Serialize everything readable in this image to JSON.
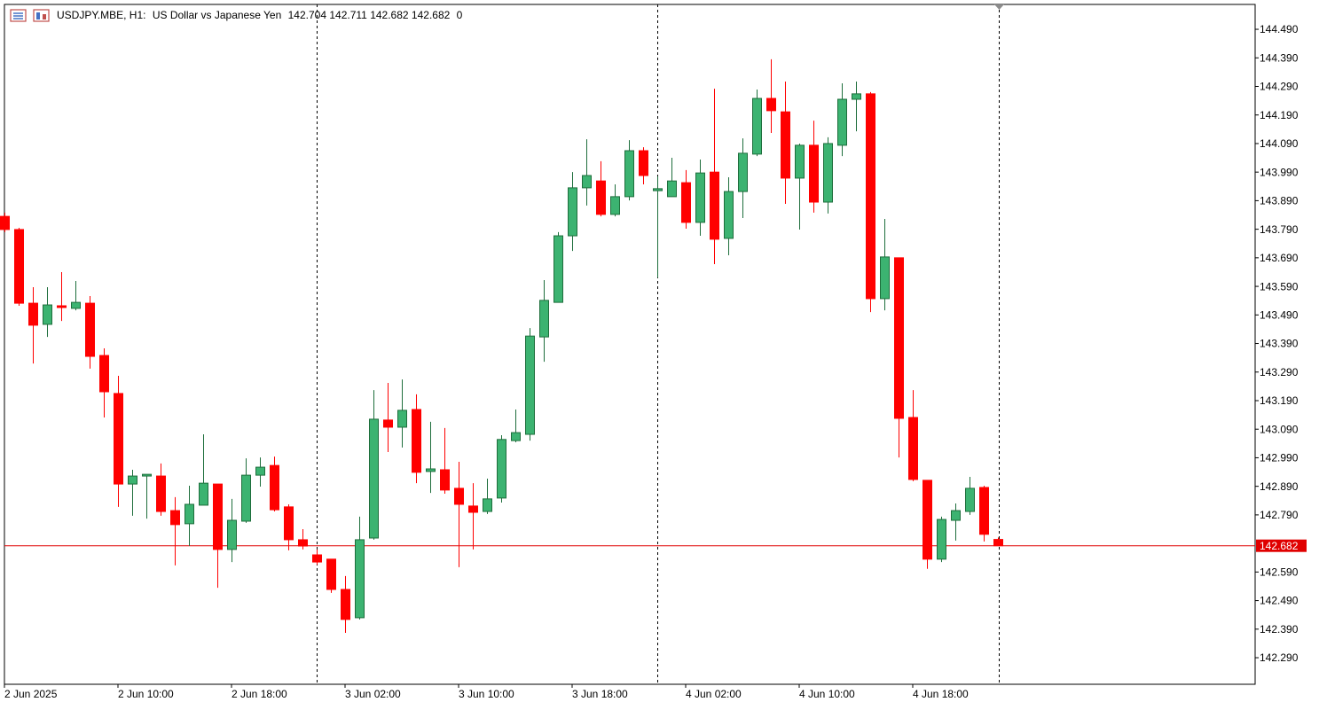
{
  "chart_data": {
    "type": "candlestick",
    "symbol": "USDJPY.MBE, H1:",
    "description": "US Dollar vs Japanese Yen",
    "spread": 0,
    "categories": [
      "2 Jun 2025",
      null,
      null,
      null,
      null,
      null,
      null,
      null,
      "2 Jun 10:00",
      null,
      null,
      null,
      null,
      null,
      null,
      null,
      "2 Jun 18:00",
      null,
      null,
      null,
      null,
      null,
      null,
      null,
      "3 Jun 02:00",
      null,
      null,
      null,
      null,
      null,
      null,
      null,
      "3 Jun 10:00",
      null,
      null,
      null,
      null,
      null,
      null,
      null,
      "3 Jun 18:00",
      null,
      null,
      null,
      null,
      null,
      null,
      null,
      "4 Jun 02:00",
      null,
      null,
      null,
      null,
      null,
      null,
      null,
      "4 Jun 10:00",
      null,
      null,
      null,
      null,
      null,
      null,
      null,
      "4 Jun 18:00",
      null,
      null,
      null,
      null,
      null,
      null
    ],
    "open": [
      143.835,
      143.789,
      143.531,
      143.457,
      143.522,
      143.513,
      143.531,
      143.348,
      143.215,
      142.898,
      142.926,
      142.926,
      142.805,
      142.759,
      142.824,
      142.898,
      142.669,
      142.768,
      142.929,
      142.963,
      142.818,
      142.703,
      142.65,
      142.635,
      142.529,
      142.43,
      142.709,
      143.122,
      143.097,
      143.159,
      142.942,
      142.948,
      142.883,
      142.821,
      142.802,
      142.849,
      143.05,
      143.072,
      143.413,
      143.534,
      143.767,
      143.935,
      143.959,
      143.842,
      143.904,
      144.065,
      143.925,
      143.904,
      143.953,
      143.814,
      143.99,
      143.758,
      143.922,
      144.053,
      144.248,
      144.201,
      143.969,
      144.084,
      143.885,
      144.084,
      144.245,
      144.264,
      143.547,
      143.69,
      143.131,
      142.911,
      142.635,
      142.771,
      142.802,
      142.886,
      142.704
    ],
    "high": [
      143.848,
      143.795,
      143.587,
      143.587,
      143.64,
      143.609,
      143.556,
      143.373,
      143.277,
      142.948,
      142.932,
      142.97,
      142.852,
      142.892,
      143.072,
      142.898,
      142.846,
      142.988,
      142.991,
      142.994,
      142.827,
      142.74,
      142.669,
      142.635,
      142.576,
      142.784,
      143.227,
      143.252,
      143.264,
      143.212,
      143.116,
      143.094,
      142.976,
      142.901,
      142.917,
      143.069,
      143.159,
      143.444,
      143.612,
      143.78,
      143.99,
      144.105,
      144.028,
      143.947,
      144.102,
      144.077,
      143.975,
      144.04,
      143.997,
      144.034,
      144.282,
      143.972,
      144.108,
      144.279,
      144.385,
      144.307,
      144.09,
      144.17,
      144.112,
      144.301,
      144.307,
      144.27,
      143.826,
      143.69,
      143.227,
      142.911,
      142.784,
      142.83,
      142.923,
      142.892,
      142.711
    ],
    "low": [
      143.78,
      143.522,
      143.32,
      143.413,
      143.469,
      143.506,
      143.302,
      143.131,
      142.818,
      142.787,
      142.777,
      142.787,
      142.613,
      142.681,
      142.824,
      142.535,
      142.625,
      142.762,
      142.889,
      142.802,
      142.666,
      142.669,
      142.616,
      142.517,
      142.377,
      142.424,
      142.703,
      143.01,
      143.026,
      142.901,
      142.867,
      142.864,
      142.607,
      142.669,
      142.793,
      142.833,
      143.044,
      143.05,
      143.326,
      143.534,
      143.714,
      143.873,
      143.835,
      143.835,
      143.891,
      143.947,
      143.621,
      143.904,
      143.792,
      143.767,
      143.668,
      143.699,
      143.829,
      144.046,
      144.127,
      143.879,
      143.789,
      143.848,
      143.845,
      144.046,
      144.133,
      143.5,
      143.506,
      142.991,
      142.908,
      142.601,
      142.625,
      142.7,
      142.79,
      142.697,
      142.682
    ],
    "close": [
      143.789,
      143.531,
      143.454,
      143.525,
      143.516,
      143.534,
      143.345,
      143.221,
      142.898,
      142.926,
      142.932,
      142.802,
      142.756,
      142.827,
      142.901,
      142.669,
      142.771,
      142.929,
      142.957,
      142.808,
      142.703,
      142.681,
      142.625,
      142.529,
      142.424,
      142.703,
      143.125,
      143.097,
      143.156,
      142.939,
      142.951,
      142.877,
      142.827,
      142.799,
      142.846,
      143.054,
      143.078,
      143.416,
      143.541,
      143.767,
      143.935,
      143.978,
      143.842,
      143.904,
      144.065,
      143.978,
      143.932,
      143.959,
      143.814,
      143.987,
      143.755,
      143.922,
      144.056,
      144.248,
      144.205,
      143.969,
      144.084,
      143.885,
      144.09,
      144.245,
      144.264,
      143.547,
      143.693,
      143.128,
      142.914,
      142.635,
      142.774,
      142.805,
      142.883,
      142.722,
      142.682
    ],
    "up_color": "#3cb371",
    "down_color": "#ff0000",
    "ylim": [
      142.197,
      144.577
    ],
    "yticks": [
      {
        "value": 144.49,
        "label": "144.490"
      },
      {
        "value": 144.39,
        "label": "144.390"
      },
      {
        "value": 144.29,
        "label": "144.290"
      },
      {
        "value": 144.19,
        "label": "144.190"
      },
      {
        "value": 144.09,
        "label": "144.090"
      },
      {
        "value": 143.99,
        "label": "143.990"
      },
      {
        "value": 143.89,
        "label": "143.890"
      },
      {
        "value": 143.79,
        "label": "143.790"
      },
      {
        "value": 143.69,
        "label": "143.690"
      },
      {
        "value": 143.59,
        "label": "143.590"
      },
      {
        "value": 143.49,
        "label": "143.490"
      },
      {
        "value": 143.39,
        "label": "143.390"
      },
      {
        "value": 143.29,
        "label": "143.290"
      },
      {
        "value": 143.19,
        "label": "143.190"
      },
      {
        "value": 143.09,
        "label": "143.090"
      },
      {
        "value": 142.99,
        "label": "142.990"
      },
      {
        "value": 142.89,
        "label": "142.890"
      },
      {
        "value": 142.79,
        "label": "142.790"
      },
      {
        "value": 142.59,
        "label": "142.590"
      },
      {
        "value": 142.49,
        "label": "142.490"
      },
      {
        "value": 142.39,
        "label": "142.390"
      },
      {
        "value": 142.29,
        "label": "142.290"
      }
    ],
    "bid_line": {
      "value": 142.682,
      "label": "142.682",
      "color": "#e00000"
    },
    "grid": false
  }
}
